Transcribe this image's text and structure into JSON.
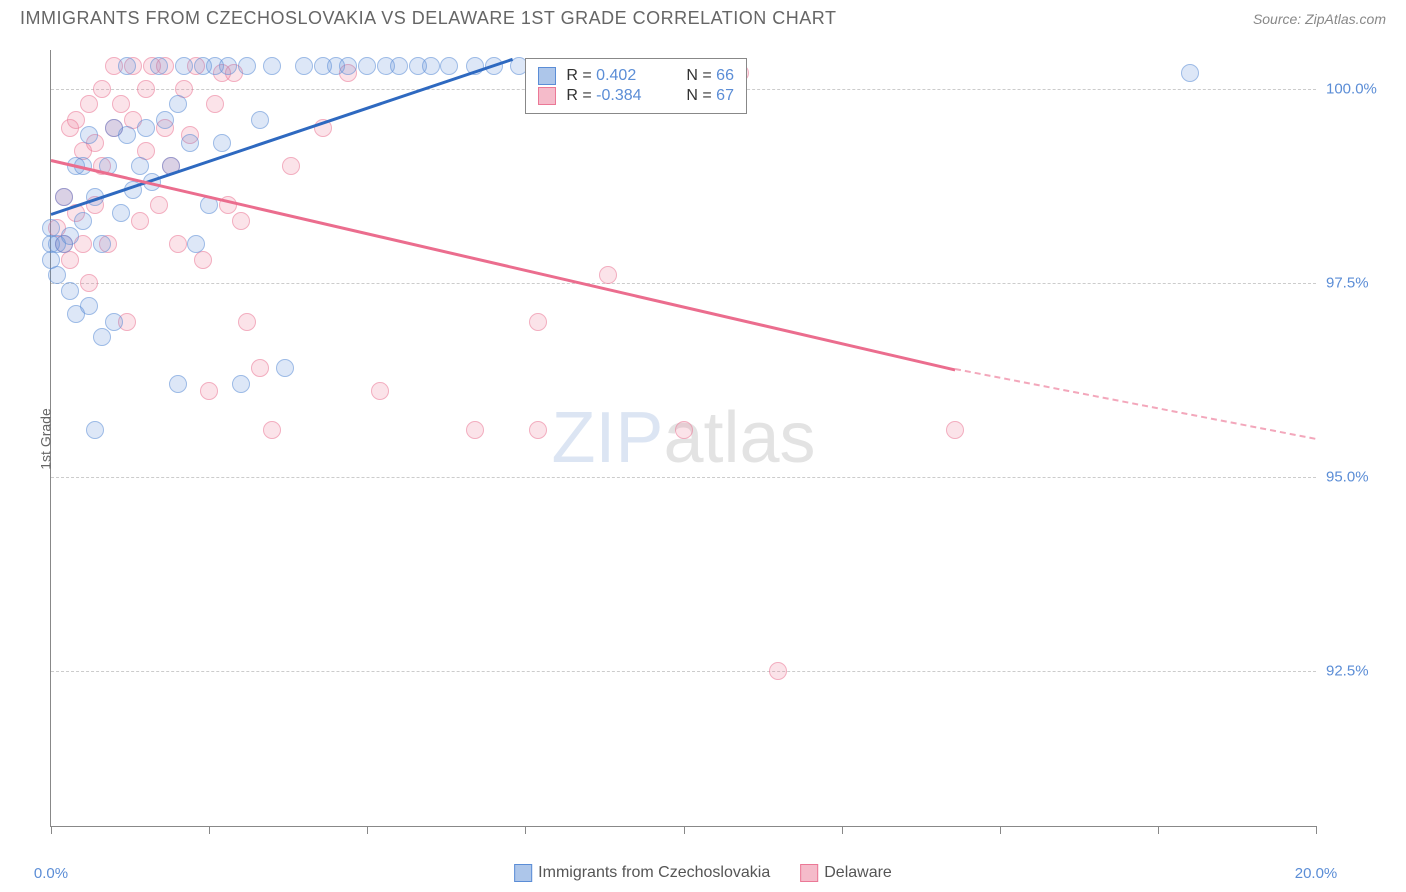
{
  "header": {
    "title": "IMMIGRANTS FROM CZECHOSLOVAKIA VS DELAWARE 1ST GRADE CORRELATION CHART",
    "source": "Source: ZipAtlas.com"
  },
  "chart": {
    "type": "scatter",
    "xlim": [
      0,
      20
    ],
    "ylim": [
      90.5,
      100.5
    ],
    "y_label": "1st Grade",
    "y_ticks": [
      92.5,
      95.0,
      97.5,
      100.0
    ],
    "y_tick_labels": [
      "92.5%",
      "95.0%",
      "97.5%",
      "100.0%"
    ],
    "x_ticks": [
      0,
      2.5,
      5,
      7.5,
      10,
      12.5,
      15,
      17.5,
      20
    ],
    "x_tick_labels": {
      "0": "0.0%",
      "20": "20.0%"
    },
    "grid_color": "#cccccc",
    "background_color": "#ffffff",
    "series": {
      "blue": {
        "name": "Immigrants from Czechoslovakia",
        "color": "#5b8dd6",
        "R": "0.402",
        "N": "66",
        "trend": {
          "x1": 0,
          "y1": 98.4,
          "x2": 7.3,
          "y2": 100.4
        },
        "points": [
          [
            0.0,
            97.8
          ],
          [
            0.0,
            98.0
          ],
          [
            0.0,
            98.2
          ],
          [
            0.1,
            98.0
          ],
          [
            0.1,
            97.6
          ],
          [
            0.2,
            98.0
          ],
          [
            0.2,
            98.6
          ],
          [
            0.3,
            98.1
          ],
          [
            0.3,
            97.4
          ],
          [
            0.4,
            99.0
          ],
          [
            0.4,
            97.1
          ],
          [
            0.5,
            99.0
          ],
          [
            0.5,
            98.3
          ],
          [
            0.6,
            97.2
          ],
          [
            0.6,
            99.4
          ],
          [
            0.7,
            98.6
          ],
          [
            0.7,
            95.6
          ],
          [
            0.8,
            96.8
          ],
          [
            0.8,
            98.0
          ],
          [
            0.9,
            99.0
          ],
          [
            1.0,
            97.0
          ],
          [
            1.0,
            99.5
          ],
          [
            1.1,
            98.4
          ],
          [
            1.2,
            100.3
          ],
          [
            1.2,
            99.4
          ],
          [
            1.3,
            98.7
          ],
          [
            1.4,
            99.0
          ],
          [
            1.5,
            99.5
          ],
          [
            1.6,
            98.8
          ],
          [
            1.7,
            100.3
          ],
          [
            1.8,
            99.6
          ],
          [
            1.9,
            99.0
          ],
          [
            2.0,
            99.8
          ],
          [
            2.0,
            96.2
          ],
          [
            2.1,
            100.3
          ],
          [
            2.2,
            99.3
          ],
          [
            2.3,
            98.0
          ],
          [
            2.4,
            100.3
          ],
          [
            2.5,
            98.5
          ],
          [
            2.6,
            100.3
          ],
          [
            2.7,
            99.3
          ],
          [
            2.8,
            100.3
          ],
          [
            3.0,
            96.2
          ],
          [
            3.1,
            100.3
          ],
          [
            3.3,
            99.6
          ],
          [
            3.5,
            100.3
          ],
          [
            3.7,
            96.4
          ],
          [
            4.0,
            100.3
          ],
          [
            4.3,
            100.3
          ],
          [
            4.5,
            100.3
          ],
          [
            4.7,
            100.3
          ],
          [
            5.0,
            100.3
          ],
          [
            5.3,
            100.3
          ],
          [
            5.5,
            100.3
          ],
          [
            5.8,
            100.3
          ],
          [
            6.0,
            100.3
          ],
          [
            6.3,
            100.3
          ],
          [
            6.7,
            100.3
          ],
          [
            7.0,
            100.3
          ],
          [
            7.4,
            100.3
          ],
          [
            18.0,
            100.2
          ]
        ]
      },
      "pink": {
        "name": "Delaware",
        "color": "#eb7896",
        "R": "-0.384",
        "N": "67",
        "trend_solid": {
          "x1": 0,
          "y1": 99.1,
          "x2": 14.3,
          "y2": 96.4
        },
        "trend_dash": {
          "x1": 14.3,
          "y1": 96.4,
          "x2": 20,
          "y2": 95.5
        },
        "points": [
          [
            0.1,
            98.2
          ],
          [
            0.2,
            98.0
          ],
          [
            0.2,
            98.6
          ],
          [
            0.3,
            99.5
          ],
          [
            0.3,
            97.8
          ],
          [
            0.4,
            98.4
          ],
          [
            0.4,
            99.6
          ],
          [
            0.5,
            98.0
          ],
          [
            0.5,
            99.2
          ],
          [
            0.6,
            99.8
          ],
          [
            0.6,
            97.5
          ],
          [
            0.7,
            99.3
          ],
          [
            0.7,
            98.5
          ],
          [
            0.8,
            99.0
          ],
          [
            0.8,
            100.0
          ],
          [
            0.9,
            98.0
          ],
          [
            1.0,
            99.5
          ],
          [
            1.0,
            100.3
          ],
          [
            1.1,
            99.8
          ],
          [
            1.2,
            97.0
          ],
          [
            1.3,
            99.6
          ],
          [
            1.3,
            100.3
          ],
          [
            1.4,
            98.3
          ],
          [
            1.5,
            100.0
          ],
          [
            1.5,
            99.2
          ],
          [
            1.6,
            100.3
          ],
          [
            1.7,
            98.5
          ],
          [
            1.8,
            99.5
          ],
          [
            1.8,
            100.3
          ],
          [
            1.9,
            99.0
          ],
          [
            2.0,
            98.0
          ],
          [
            2.1,
            100.0
          ],
          [
            2.2,
            99.4
          ],
          [
            2.3,
            100.3
          ],
          [
            2.4,
            97.8
          ],
          [
            2.5,
            96.1
          ],
          [
            2.6,
            99.8
          ],
          [
            2.7,
            100.2
          ],
          [
            2.8,
            98.5
          ],
          [
            2.9,
            100.2
          ],
          [
            3.0,
            98.3
          ],
          [
            3.1,
            97.0
          ],
          [
            3.3,
            96.4
          ],
          [
            3.5,
            95.6
          ],
          [
            3.8,
            99.0
          ],
          [
            4.3,
            99.5
          ],
          [
            4.7,
            100.2
          ],
          [
            5.2,
            96.1
          ],
          [
            6.7,
            95.6
          ],
          [
            7.7,
            97.0
          ],
          [
            7.7,
            95.6
          ],
          [
            8.8,
            97.6
          ],
          [
            10.0,
            95.6
          ],
          [
            10.3,
            100.2
          ],
          [
            10.9,
            100.2
          ],
          [
            11.5,
            92.5
          ],
          [
            14.3,
            95.6
          ]
        ]
      }
    },
    "watermark": {
      "zip": "ZIP",
      "atlas": "atlas"
    }
  },
  "bottom_legend": {
    "blue_label": "Immigrants from Czechoslovakia",
    "pink_label": "Delaware"
  },
  "stats_legend": {
    "rows": [
      {
        "color": "blue",
        "r_label": "R = ",
        "r_val": "0.402",
        "n_label": "N = ",
        "n_val": "66"
      },
      {
        "color": "pink",
        "r_label": "R = ",
        "r_val": "-0.384",
        "n_label": "N = ",
        "n_val": "67"
      }
    ]
  }
}
